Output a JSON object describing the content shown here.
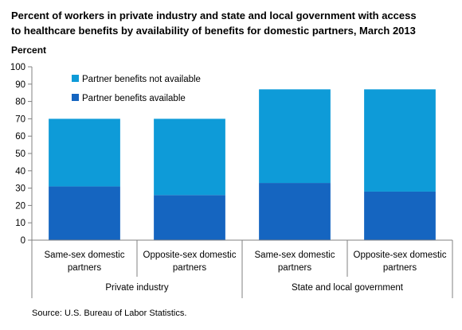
{
  "title_lines": [
    "Percent of workers in private industry and state and local government with access",
    "to healthcare benefits by availability of benefits for domestic partners, March 2013"
  ],
  "source": "Source: U.S. Bureau of Labor Statistics.",
  "chart_data": {
    "type": "bar",
    "stacked": true,
    "title": "Percent of workers in private industry and state and local government with access to healthcare benefits by availability of benefits for domestic partners, March 2013",
    "ylabel": "Percent",
    "xlabel": "",
    "ylim": [
      0,
      100
    ],
    "yticks": [
      0,
      10,
      20,
      30,
      40,
      50,
      60,
      70,
      80,
      90,
      100
    ],
    "grid": false,
    "legend": "top-left",
    "categories": [
      [
        "Same-sex domestic",
        "partners"
      ],
      [
        "Opposite-sex domestic",
        "partners"
      ],
      [
        "Same-sex domestic",
        "partners"
      ],
      [
        "Opposite-sex domestic",
        "partners"
      ]
    ],
    "groups": [
      {
        "label": "Private industry",
        "categories": [
          0,
          1
        ]
      },
      {
        "label": "State and local government",
        "categories": [
          2,
          3
        ]
      }
    ],
    "series": [
      {
        "name": "Partner benefits available",
        "color": "#1565c0",
        "values": [
          31,
          26,
          33,
          28
        ]
      },
      {
        "name": "Partner benefits not available",
        "color": "#0e9bd8",
        "values": [
          39,
          44,
          54,
          59
        ]
      }
    ],
    "legend_order": [
      1,
      0
    ]
  }
}
